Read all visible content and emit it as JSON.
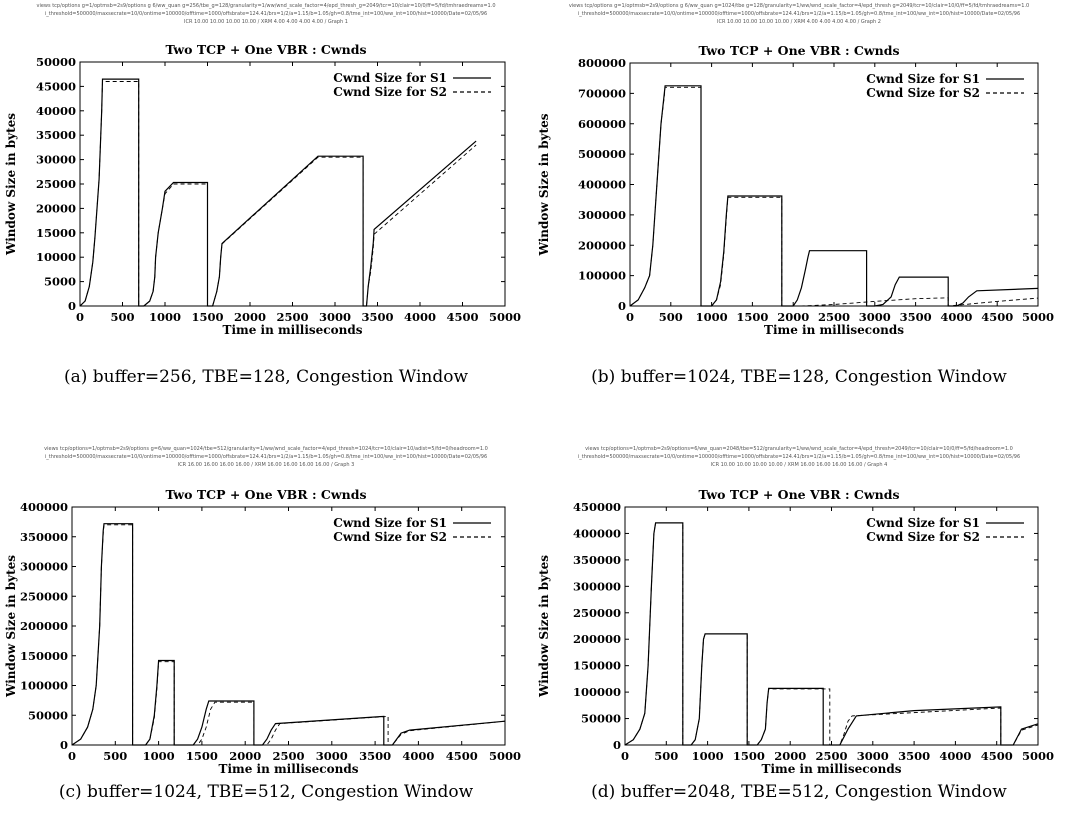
{
  "figures": [
    {
      "header": [
        "views tcp/options g=1/optmsb=2s9/options g 6/ww_quan g=256/tbe_g=128/granularity=1/ww/wnd_scale_factor=4/epd_thresh_g=2049/tcr=10/clair=10/0/ff=5/fd/tmhraedreams=1.0",
        "i_threshold=500000/maxsecrate=10/0/ontime=100000/offtime=1000/offsbrate=124.41/brs=1/2/a=1.15/b=1.05/gh=0.8/tme_int=100/ww_int=100/hist=10000/Date=02/05/96",
        "ICR 10.00 10.00 10.00 10.00 / XRM 4.00 4.00 4.00 4.00 / Graph 1"
      ],
      "caption": "(a) buffer=256, TBE=128, Congestion Window"
    },
    {
      "header": [
        "views tcp/options g=1/optmsb=2s9/options g 6/ww_quan g=1024/tbe g=128/granularity=1/ww/wnd_scale_factor=4/epd_thresh g=2049/tcr=10/clair=10/0/ff=5/fd/tmhraedreams=1.0",
        "i_threshold=500000/maxsecrate=10/0/ontime=100000/offtime=1000/offsbrate=124.41/brs=1/2/a=1.15/b=1.05/gh=0.8/tme_int=100/ww_int=100/hist=10000/Date=02/05/96",
        "ICR 10.00 10.00 10.00 10.00 / XRM 4.00 4.00 4.00 4.00 / Graph 2"
      ],
      "caption": "(b) buffer=1024, TBE=128, Congestion Window"
    },
    {
      "header": [
        "views tcp/options=1/optmsb=2s9/options g=6/ww_quan=1024/tbe=512/granularity=1/ww/wnd_scale_factor=4/epd_thresh=1024/tcr=10/clair=10/adist=5/fd=0/headroom=1.0",
        "i_threshold=500000/maxsecrate=10/0/ontime=100000/offtime=1000/offsbrate=124.41/brs=1/2/a=1.15/b=1.05/gh=0.8/tme_int=100/ww_int=100/hist=10000/Date=02/05/96",
        "ICR 16.00 16.00 16.00 16.00 / XRM 16.00 16.00 16.00 16.00 / Graph 3"
      ],
      "caption": "(c) buffer=1024, TBE=512, Congestion Window"
    },
    {
      "header": [
        "views tcp/options=1/optmsb=2s9/options=6/ww_quan=2048/tbe=512/granularity=1/ww/wnd_scale_factor=4/epd_thresh=2049/tcr=10/clair=10/0/ff=5/fd/headroom=1.0",
        "i_threshold=500000/maxsecrate=10/0/ontime=100000/offtime=1000/offsbrate=124.41/brs=1/2/a=1.15/b=1.05/gh=0.8/tme_int=100/ww_int=100/hist=10000/Date=02/05/96",
        "ICR 10.00 10.00 10.00 10.00 / XRM 16.00 16.00 16.00 16.00 / Graph 4"
      ],
      "caption": "(d) buffer=2048, TBE=512, Congestion Window"
    }
  ],
  "chart_data": [
    {
      "type": "line",
      "title": "Two TCP + One VBR : Cwnds",
      "xlabel": "Time in milliseconds",
      "ylabel": "Window Size in bytes",
      "xlim": [
        0,
        5000
      ],
      "ylim": [
        0,
        50000
      ],
      "xticks": [
        0,
        500,
        1000,
        1500,
        2000,
        2500,
        3000,
        3500,
        4000,
        4500,
        5000
      ],
      "yticks": [
        0,
        5000,
        10000,
        15000,
        20000,
        25000,
        30000,
        35000,
        40000,
        45000,
        50000
      ],
      "grid": false,
      "legend": "top-right",
      "series": [
        {
          "name": "Cwnd Size for S1",
          "dash": "none",
          "x": [
            0,
            60,
            110,
            150,
            175,
            200,
            225,
            240,
            255,
            265,
            690,
            690,
            750,
            820,
            860,
            880,
            890,
            920,
            970,
            1000,
            1100,
            1500,
            1500,
            1560,
            1610,
            1640,
            1655,
            1670,
            2800,
            3050,
            3330,
            3330,
            3370,
            3390,
            3420,
            3450,
            3460,
            4660
          ],
          "y": [
            0,
            1000,
            4000,
            9000,
            14000,
            20000,
            26000,
            33000,
            40000,
            46500,
            46500,
            0,
            0,
            1000,
            3000,
            6000,
            10000,
            15000,
            20000,
            23500,
            25300,
            25300,
            0,
            0,
            3000,
            6000,
            10000,
            12800,
            30700,
            30700,
            30700,
            0,
            0,
            4000,
            8000,
            13000,
            15700,
            33800
          ]
        },
        {
          "name": "Cwnd Size for S2",
          "dash": "4,3",
          "x": [
            0,
            60,
            110,
            150,
            175,
            200,
            225,
            240,
            255,
            265,
            690,
            690,
            750,
            820,
            860,
            880,
            890,
            920,
            970,
            1000,
            1100,
            1500,
            1500,
            1560,
            1610,
            1640,
            1655,
            1670,
            2800,
            3050,
            3330,
            3330,
            3370,
            3390,
            3420,
            3450,
            3460,
            4660
          ],
          "y": [
            0,
            1000,
            4000,
            9000,
            14000,
            20000,
            26000,
            33000,
            40000,
            46000,
            46000,
            0,
            0,
            1000,
            3000,
            6000,
            10000,
            15000,
            20000,
            23000,
            25000,
            25000,
            0,
            0,
            3000,
            6000,
            10000,
            12700,
            30500,
            30500,
            30500,
            0,
            0,
            4000,
            7000,
            12000,
            14700,
            33000
          ]
        }
      ]
    },
    {
      "type": "line",
      "title": "Two TCP + One VBR : Cwnds",
      "xlabel": "Time in milliseconds",
      "ylabel": "Window Size in bytes",
      "xlim": [
        0,
        5000
      ],
      "ylim": [
        0,
        800000
      ],
      "xticks": [
        0,
        500,
        1000,
        1500,
        2000,
        2500,
        3000,
        3500,
        4000,
        4500,
        5000
      ],
      "yticks": [
        0,
        100000,
        200000,
        300000,
        400000,
        500000,
        600000,
        700000,
        800000
      ],
      "grid": false,
      "legend": "top-right",
      "series": [
        {
          "name": "Cwnd Size for S1",
          "dash": "none",
          "x": [
            0,
            100,
            180,
            240,
            280,
            330,
            380,
            420,
            430,
            870,
            870,
            1000,
            1060,
            1110,
            1150,
            1180,
            1200,
            1860,
            1860,
            2000,
            2050,
            2100,
            2150,
            2180,
            2200,
            2900,
            2900,
            3000,
            3100,
            3200,
            3250,
            3300,
            3900,
            3900,
            4000,
            4080,
            4150,
            4250,
            5000
          ],
          "y": [
            0,
            20000,
            60000,
            100000,
            200000,
            400000,
            600000,
            700000,
            725000,
            725000,
            0,
            0,
            20000,
            80000,
            180000,
            300000,
            362000,
            362000,
            0,
            0,
            20000,
            60000,
            120000,
            160000,
            182000,
            182000,
            0,
            0,
            5000,
            30000,
            70000,
            95000,
            95000,
            0,
            0,
            10000,
            30000,
            50000,
            58000
          ]
        },
        {
          "name": "Cwnd Size for S2",
          "dash": "4,3",
          "x": [
            0,
            100,
            180,
            240,
            280,
            330,
            380,
            420,
            430,
            870,
            870,
            1000,
            1060,
            1110,
            1150,
            1180,
            1200,
            1860,
            1860,
            2100,
            2500,
            3000,
            3500,
            3900,
            3900,
            4100,
            4500,
            5000
          ],
          "y": [
            0,
            20000,
            60000,
            100000,
            200000,
            400000,
            600000,
            690000,
            720000,
            720000,
            0,
            0,
            20000,
            70000,
            170000,
            290000,
            358000,
            358000,
            0,
            0,
            5000,
            15000,
            24000,
            27000,
            0,
            5000,
            15000,
            26000
          ]
        }
      ]
    },
    {
      "type": "line",
      "title": "Two TCP + One VBR : Cwnds",
      "xlabel": "Time in milliseconds",
      "ylabel": "Window Size in bytes",
      "xlim": [
        0,
        5000
      ],
      "ylim": [
        0,
        400000
      ],
      "xticks": [
        0,
        500,
        1000,
        1500,
        2000,
        2500,
        3000,
        3500,
        4000,
        4500,
        5000
      ],
      "yticks": [
        0,
        50000,
        100000,
        150000,
        200000,
        250000,
        300000,
        350000,
        400000
      ],
      "grid": false,
      "legend": "top-right",
      "series": [
        {
          "name": "Cwnd Size for S1",
          "dash": "none",
          "x": [
            0,
            100,
            180,
            240,
            280,
            320,
            340,
            360,
            370,
            700,
            700,
            850,
            900,
            950,
            980,
            1000,
            1180,
            1180,
            1400,
            1450,
            1500,
            1550,
            1580,
            2100,
            2100,
            2200,
            2250,
            2300,
            2350,
            3600,
            3600,
            3700,
            3800,
            3900,
            5000
          ],
          "y": [
            0,
            10000,
            30000,
            60000,
            100000,
            200000,
            300000,
            360000,
            372000,
            372000,
            0,
            0,
            10000,
            50000,
            100000,
            142000,
            142000,
            0,
            0,
            10000,
            30000,
            60000,
            74000,
            74000,
            0,
            0,
            10000,
            25000,
            36000,
            48000,
            0,
            0,
            20000,
            25000,
            40000
          ]
        },
        {
          "name": "Cwnd Size for S2",
          "dash": "4,3",
          "x": [
            0,
            100,
            180,
            240,
            280,
            320,
            340,
            360,
            370,
            700,
            700,
            850,
            900,
            950,
            980,
            1000,
            1180,
            1180,
            1450,
            1500,
            1550,
            1600,
            1650,
            2100,
            2100,
            2250,
            2300,
            2350,
            2400,
            3650,
            3650,
            3700,
            3800,
            3900,
            5000
          ],
          "y": [
            0,
            10000,
            30000,
            60000,
            100000,
            200000,
            300000,
            355000,
            370000,
            370000,
            0,
            0,
            10000,
            45000,
            95000,
            140000,
            140000,
            0,
            0,
            10000,
            30000,
            60000,
            72000,
            72000,
            0,
            0,
            10000,
            25000,
            36000,
            48000,
            0,
            0,
            18000,
            24000,
            40000
          ]
        }
      ]
    },
    {
      "type": "line",
      "title": "Two TCP + One VBR : Cwnds",
      "xlabel": "Time in milliseconds",
      "ylabel": "Window Size in bytes",
      "xlim": [
        0,
        5000
      ],
      "ylim": [
        0,
        450000
      ],
      "xticks": [
        0,
        500,
        1000,
        1500,
        2000,
        2500,
        3000,
        3500,
        4000,
        4500,
        5000
      ],
      "yticks": [
        0,
        50000,
        100000,
        150000,
        200000,
        250000,
        300000,
        350000,
        400000,
        450000
      ],
      "grid": false,
      "legend": "top-right",
      "series": [
        {
          "name": "Cwnd Size for S1",
          "dash": "none",
          "x": [
            0,
            100,
            180,
            240,
            280,
            320,
            350,
            370,
            380,
            700,
            700,
            800,
            850,
            900,
            930,
            950,
            970,
            1480,
            1480,
            1600,
            1650,
            1700,
            1720,
            1740,
            2400,
            2400,
            2600,
            2700,
            2800,
            3500,
            4550,
            4550,
            4700,
            4800,
            5000
          ],
          "y": [
            0,
            10000,
            30000,
            60000,
            150000,
            300000,
            400000,
            420000,
            420000,
            420000,
            0,
            0,
            10000,
            50000,
            150000,
            200000,
            210000,
            210000,
            0,
            0,
            10000,
            30000,
            80000,
            107000,
            107000,
            0,
            0,
            30000,
            55000,
            65000,
            72000,
            0,
            0,
            30000,
            40000
          ]
        },
        {
          "name": "Cwnd Size for S2",
          "dash": "4,3",
          "x": [
            0,
            100,
            180,
            240,
            280,
            320,
            350,
            370,
            380,
            700,
            700,
            800,
            850,
            900,
            930,
            950,
            970,
            1480,
            1480,
            1600,
            1650,
            1700,
            1720,
            1740,
            2480,
            2480,
            2600,
            2650,
            2700,
            2750,
            4550,
            4550,
            4700,
            4800,
            5000
          ],
          "y": [
            0,
            10000,
            30000,
            60000,
            150000,
            300000,
            400000,
            420000,
            420000,
            420000,
            0,
            0,
            10000,
            50000,
            150000,
            200000,
            210000,
            210000,
            0,
            0,
            10000,
            30000,
            80000,
            106000,
            106000,
            0,
            0,
            20000,
            45000,
            55000,
            70000,
            0,
            0,
            28000,
            38000
          ]
        }
      ]
    }
  ]
}
